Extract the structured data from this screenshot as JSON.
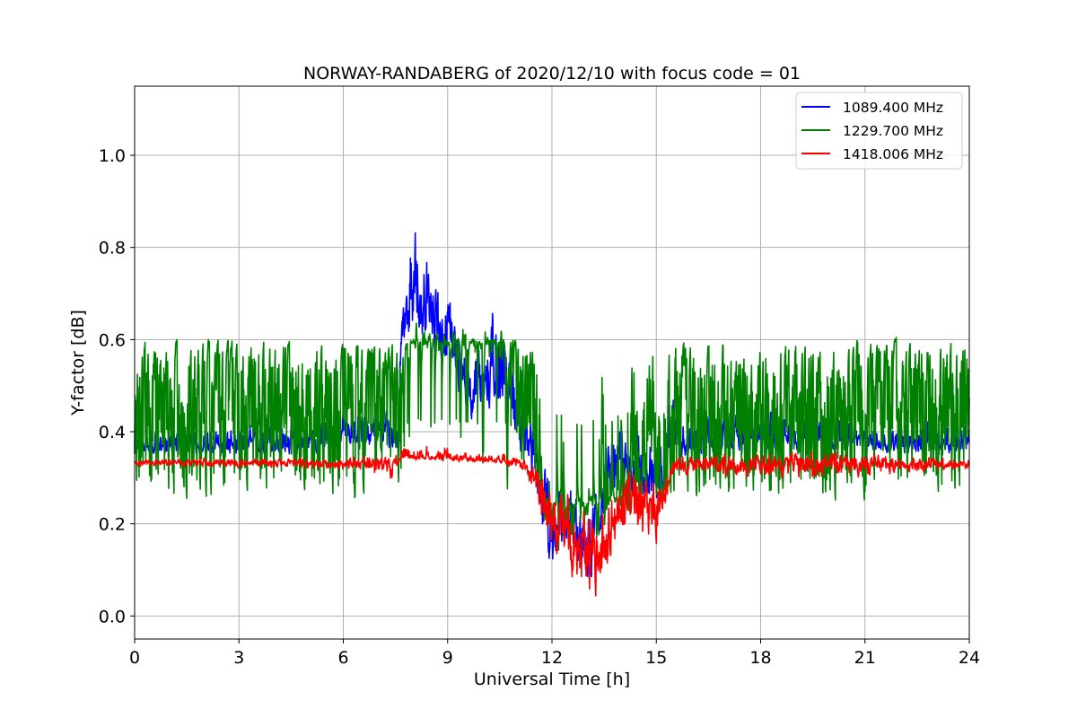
{
  "chart_data": {
    "type": "line",
    "title": "NORWAY-RANDABERG of 2020/12/10 with focus code = 01",
    "xlabel": "Universal Time [h]",
    "ylabel": "Y-factor [dB]",
    "xlim": [
      0,
      24
    ],
    "ylim": [
      -0.05,
      1.15
    ],
    "xticks": [
      0,
      3,
      6,
      9,
      12,
      15,
      18,
      21,
      24
    ],
    "yticks": [
      0.0,
      0.2,
      0.4,
      0.6,
      0.8,
      1.0
    ],
    "grid": true,
    "legend_position": "top-right",
    "series": [
      {
        "name": "1089.400 MHz",
        "color": "#0000ff",
        "profile": [
          [
            0,
            0.37,
            0.02,
            0.04
          ],
          [
            2,
            0.37,
            0.03,
            0.05
          ],
          [
            4.5,
            0.38,
            0.04,
            0.06
          ],
          [
            6,
            0.4,
            0.05,
            0.07
          ],
          [
            7.6,
            0.4,
            0.06,
            0.08
          ],
          [
            7.65,
            0.66,
            0.1,
            0.12
          ],
          [
            8.1,
            0.7,
            0.12,
            0.2
          ],
          [
            9.0,
            0.62,
            0.12,
            0.12
          ],
          [
            9.6,
            0.5,
            0.1,
            0.1
          ],
          [
            10.4,
            0.55,
            0.12,
            0.18
          ],
          [
            11.0,
            0.45,
            0.1,
            0.1
          ],
          [
            11.5,
            0.35,
            0.1,
            0.1
          ],
          [
            12.0,
            0.18,
            0.12,
            0.14
          ],
          [
            12.5,
            0.22,
            0.14,
            0.12
          ],
          [
            13.0,
            0.15,
            0.14,
            0.1
          ],
          [
            13.5,
            0.3,
            0.12,
            0.12
          ],
          [
            14.0,
            0.35,
            0.1,
            0.12
          ],
          [
            15.0,
            0.3,
            0.1,
            0.1
          ],
          [
            15.4,
            0.38,
            0.05,
            0.18
          ],
          [
            16.0,
            0.38,
            0.04,
            0.08
          ],
          [
            19.0,
            0.39,
            0.04,
            0.08
          ],
          [
            21.0,
            0.38,
            0.03,
            0.06
          ],
          [
            23.0,
            0.37,
            0.03,
            0.08
          ],
          [
            24.0,
            0.38,
            0.03,
            0.05
          ]
        ]
      },
      {
        "name": "1229.700 MHz",
        "color": "#008000",
        "profile": [
          [
            0,
            0.46,
            0.18,
            0.16
          ],
          [
            3,
            0.44,
            0.2,
            0.17
          ],
          [
            6,
            0.42,
            0.18,
            0.15
          ],
          [
            7.6,
            0.48,
            0.16,
            0.12
          ],
          [
            8.0,
            0.6,
            0.08,
            0.04
          ],
          [
            10.5,
            0.58,
            0.1,
            0.04
          ],
          [
            11.2,
            0.5,
            0.14,
            0.2
          ],
          [
            11.8,
            0.25,
            0.15,
            0.12
          ],
          [
            12.5,
            0.15,
            0.12,
            0.1
          ],
          [
            13.5,
            0.25,
            0.12,
            0.12
          ],
          [
            14.5,
            0.35,
            0.12,
            0.12
          ],
          [
            15.5,
            0.42,
            0.16,
            0.14
          ],
          [
            18,
            0.43,
            0.2,
            0.18
          ],
          [
            21,
            0.44,
            0.2,
            0.17
          ],
          [
            24,
            0.45,
            0.2,
            0.16
          ]
        ]
      },
      {
        "name": "1418.006 MHz",
        "color": "#ff0000",
        "profile": [
          [
            0,
            0.334,
            0.01,
            0.01
          ],
          [
            6,
            0.334,
            0.02,
            0.015
          ],
          [
            7.5,
            0.336,
            0.05,
            0.02
          ],
          [
            7.6,
            0.345,
            0.01,
            0.04
          ],
          [
            10.4,
            0.34,
            0.01,
            0.02
          ],
          [
            11.2,
            0.33,
            0.02,
            0.02
          ],
          [
            11.8,
            0.26,
            0.1,
            0.08
          ],
          [
            12.5,
            0.18,
            0.14,
            0.12
          ],
          [
            13.3,
            0.15,
            0.14,
            0.12
          ],
          [
            14.0,
            0.25,
            0.12,
            0.09
          ],
          [
            14.5,
            0.28,
            0.14,
            0.06
          ],
          [
            15.0,
            0.24,
            0.1,
            0.08
          ],
          [
            15.5,
            0.334,
            0.03,
            0.02
          ],
          [
            19.5,
            0.334,
            0.05,
            0.04
          ],
          [
            24,
            0.334,
            0.02,
            0.01
          ]
        ]
      }
    ]
  }
}
